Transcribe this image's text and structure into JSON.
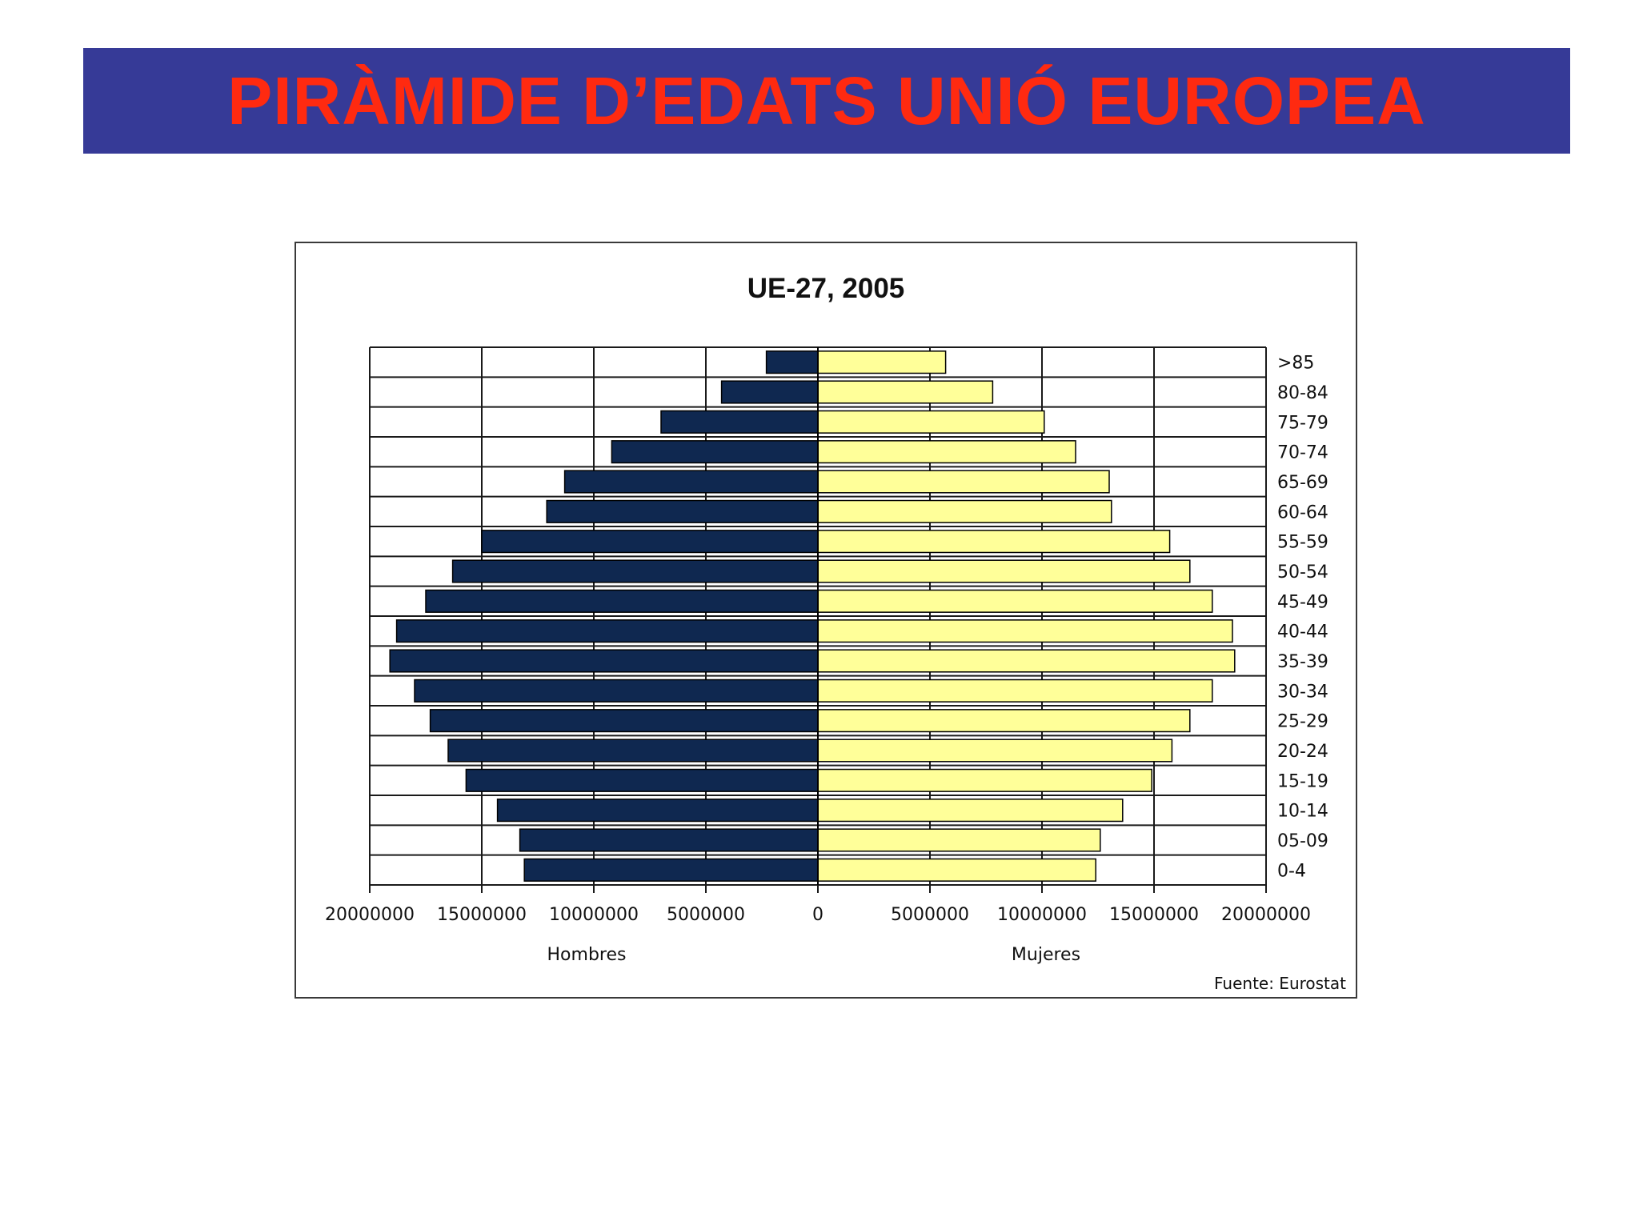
{
  "slide": {
    "title": "PIRÀMIDE D’EDATS UNIÓ EUROPEA",
    "banner_color": "#363a97",
    "title_color": "#ff2a10"
  },
  "chart_data": {
    "type": "bar",
    "orientation": "horizontal",
    "subtype": "population-pyramid",
    "title": "UE-27,  2005",
    "categories": [
      ">85",
      "80-84",
      "75-79",
      "70-74",
      "65-69",
      "60-64",
      "55-59",
      "50-54",
      "45-49",
      "40-44",
      "35-39",
      "30-34",
      "25-29",
      "20-24",
      "15-19",
      "10-14",
      "05-09",
      "0-4"
    ],
    "series": [
      {
        "name": "Hombres",
        "side": "left",
        "color": "#0f2850",
        "values": [
          2300000,
          4300000,
          7000000,
          9200000,
          11300000,
          12100000,
          15000000,
          16300000,
          17500000,
          18800000,
          19100000,
          18000000,
          17300000,
          16500000,
          15700000,
          14300000,
          13300000,
          13100000
        ]
      },
      {
        "name": "Mujeres",
        "side": "right",
        "color": "#ffff99",
        "values": [
          5700000,
          7800000,
          10100000,
          11500000,
          13000000,
          13100000,
          15700000,
          16600000,
          17600000,
          18500000,
          18600000,
          17600000,
          16600000,
          15800000,
          14900000,
          13600000,
          12600000,
          12400000
        ]
      }
    ],
    "x_ticks": [
      "20000000",
      "15000000",
      "10000000",
      "5000000",
      "0",
      "5000000",
      "10000000",
      "15000000",
      "20000000"
    ],
    "xlim": [
      -20000000,
      20000000
    ],
    "xlabel_left": "Hombres",
    "xlabel_right": "Mujeres",
    "grid": true,
    "source": "Fuente: Eurostat"
  }
}
